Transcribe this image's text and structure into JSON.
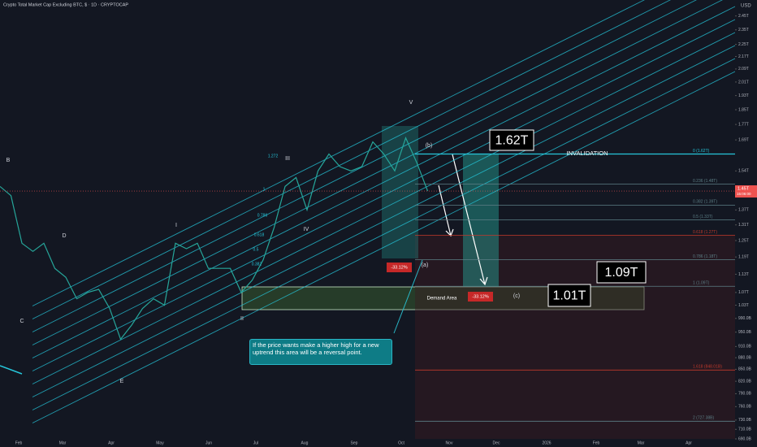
{
  "header": {
    "title": "Crypto Total Market Cap Excluding BTC, $ · 1D · CRYPTOCAP",
    "currency": "USD"
  },
  "chart_data": {
    "type": "line",
    "color": "#26a69a",
    "log_scale": true,
    "values": [
      1.47,
      1.43,
      1.24,
      1.21,
      1.24,
      1.15,
      1.12,
      1.05,
      1.07,
      1.08,
      1.02,
      0.93,
      0.97,
      1.02,
      1.05,
      1.03,
      1.24,
      1.22,
      1.24,
      1.15,
      1.15,
      1.15,
      1.07,
      1.11,
      1.18,
      1.3,
      1.47,
      1.51,
      1.37,
      1.54,
      1.62,
      1.56,
      1.54,
      1.56,
      1.68,
      1.62,
      1.54,
      1.7,
      1.58,
      1.45
    ],
    "ylim": [
      0.69,
      2.57
    ],
    "yticks": [
      {
        "value": 2.45,
        "label": "2.45T"
      },
      {
        "value": 2.35,
        "label": "2.35T"
      },
      {
        "value": 2.25,
        "label": "2.25T"
      },
      {
        "value": 2.17,
        "label": "2.17T"
      },
      {
        "value": 2.09,
        "label": "2.09T"
      },
      {
        "value": 2.01,
        "label": "2.01T"
      },
      {
        "value": 1.93,
        "label": "1.93T"
      },
      {
        "value": 1.85,
        "label": "1.85T"
      },
      {
        "value": 1.77,
        "label": "1.77T"
      },
      {
        "value": 1.69,
        "label": "1.69T"
      },
      {
        "value": 1.54,
        "label": "1.54T"
      },
      {
        "value": 1.37,
        "label": "1.37T"
      },
      {
        "value": 1.31,
        "label": "1.31T"
      },
      {
        "value": 1.25,
        "label": "1.25T"
      },
      {
        "value": 1.19,
        "label": "1.19T"
      },
      {
        "value": 1.13,
        "label": "1.13T"
      },
      {
        "value": 1.07,
        "label": "1.07T"
      },
      {
        "value": 1.03,
        "label": "1.03T"
      },
      {
        "value": 0.99,
        "label": "990.0B"
      },
      {
        "value": 0.95,
        "label": "950.0B"
      },
      {
        "value": 0.91,
        "label": "910.0B"
      },
      {
        "value": 0.88,
        "label": "880.0B"
      },
      {
        "value": 0.85,
        "label": "850.0B"
      },
      {
        "value": 0.82,
        "label": "820.0B"
      },
      {
        "value": 0.79,
        "label": "790.0B"
      },
      {
        "value": 0.76,
        "label": "760.0B"
      },
      {
        "value": 0.73,
        "label": "730.0B"
      },
      {
        "value": 0.71,
        "label": "710.0B"
      },
      {
        "value": 0.69,
        "label": "690.0B"
      }
    ],
    "time_labels": [
      "Feb",
      "Mar",
      "Apr",
      "May",
      "Jun",
      "Jul",
      "Aug",
      "Sep",
      "Oct",
      "Nov",
      "Dec",
      "2026",
      "Feb",
      "Mar",
      "Apr"
    ],
    "current_price": {
      "value": 1.45,
      "label": "1.45T",
      "countdown": "15:06:00"
    },
    "levels": [
      {
        "value": 1.62,
        "label": "0 (1.62T)",
        "color": "#26c6da"
      },
      {
        "value": 1.48,
        "label": "0.236 (1.48T)",
        "color": "#5d7f86"
      },
      {
        "value": 1.39,
        "label": "0.382 (1.39T)",
        "color": "#5d7f86"
      },
      {
        "value": 1.33,
        "label": "0.5 (1.33T)",
        "color": "#5d7f86"
      },
      {
        "value": 1.27,
        "label": "0.618 (1.27T)",
        "color": "#c0392b"
      },
      {
        "value": 1.18,
        "label": "0.786 (1.18T)",
        "color": "#5d7f86"
      },
      {
        "value": 1.09,
        "label": "1 (1.09T)",
        "color": "#5d7f86"
      },
      {
        "value": 0.84801,
        "label": "1.618 (848.01B)",
        "color": "#c0392b"
      },
      {
        "value": 0.72738,
        "label": "2 (727.38B)",
        "color": "#5d7f86"
      }
    ]
  },
  "annotations": {
    "waves": [
      "B",
      "C",
      "D",
      "E",
      "I",
      "II",
      "III",
      "IV",
      "V",
      "(a)",
      "(b)",
      "(c)"
    ],
    "channel_labels": [
      "1.272",
      "1",
      "0.786",
      "0.618",
      "0.5",
      "0.382"
    ],
    "invalidation": "INVALIDATION",
    "demand_area": "Demand Area",
    "price_tags": [
      "1.62T",
      "1.09T",
      "1.01T"
    ],
    "drops": [
      "-33.12%",
      "-33.12%"
    ],
    "note": "If the price wants make a higher high for a new uptrend this area will be a reversal point."
  }
}
